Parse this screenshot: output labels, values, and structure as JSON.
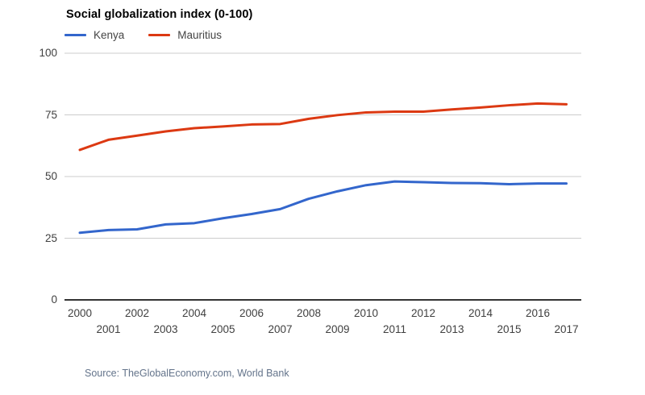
{
  "title": "Social globalization index (0-100)",
  "source_note": "Source: TheGlobalEconomy.com, World Bank",
  "colors": {
    "kenya_line": "#3366cc",
    "mauritius_line": "#dc3912",
    "gridline": "#cccccc",
    "zero_axis": "#333333",
    "tick_text": "#404040",
    "source_text": "#64748b"
  },
  "legend": [
    {
      "label": "Kenya",
      "color": "#3366cc"
    },
    {
      "label": "Mauritius",
      "color": "#dc3912"
    }
  ],
  "chart_data": {
    "type": "line",
    "title": "Social globalization index (0-100)",
    "x": [
      2000,
      2001,
      2002,
      2003,
      2004,
      2005,
      2006,
      2007,
      2008,
      2009,
      2010,
      2011,
      2012,
      2013,
      2014,
      2015,
      2016,
      2017
    ],
    "series": [
      {
        "name": "Kenya",
        "color": "#3366cc",
        "values": [
          27.2,
          28.3,
          28.6,
          30.6,
          31.1,
          33.1,
          34.8,
          36.8,
          41.0,
          44.0,
          46.5,
          48.0,
          47.7,
          47.4,
          47.3,
          46.9,
          47.2,
          47.2
        ]
      },
      {
        "name": "Mauritius",
        "color": "#dc3912",
        "values": [
          60.8,
          64.9,
          66.6,
          68.3,
          69.6,
          70.3,
          71.1,
          71.3,
          73.4,
          74.9,
          76.0,
          76.3,
          76.3,
          77.2,
          78.0,
          78.9,
          79.6,
          79.3
        ]
      }
    ],
    "ylim": [
      0,
      100
    ],
    "yticks": [
      0,
      25,
      50,
      75,
      100
    ],
    "grid": true,
    "legend_position": "top-left",
    "x_label_stagger": true
  }
}
